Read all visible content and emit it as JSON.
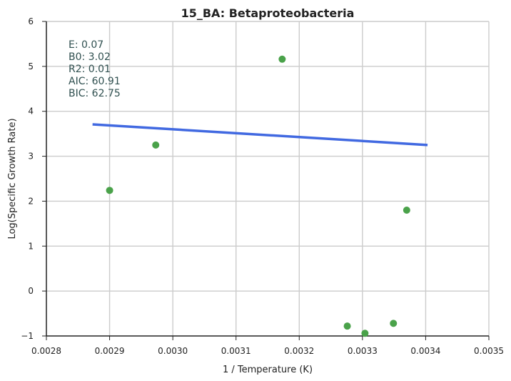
{
  "chart_data": {
    "type": "scatter",
    "title": "15_BA: Betaproteobacteria",
    "xlabel": "1 / Temperature (K)",
    "ylabel": "Log(Specific Growth Rate)",
    "xlim": [
      0.0028,
      0.0035
    ],
    "ylim": [
      -1,
      6
    ],
    "x_ticks": [
      "0.0028",
      "0.0029",
      "0.0030",
      "0.0031",
      "0.0032",
      "0.0033",
      "0.0034",
      "0.0035"
    ],
    "y_ticks": [
      "−1",
      "0",
      "1",
      "2",
      "3",
      "4",
      "5",
      "6"
    ],
    "grid": true,
    "series": [
      {
        "type": "scatter",
        "color": "#4aa24a",
        "x": [
          0.0029,
          0.002973,
          0.003173,
          0.003276,
          0.003304,
          0.003349,
          0.00337
        ],
        "y": [
          2.24,
          3.25,
          5.16,
          -0.78,
          -0.94,
          -0.72,
          1.8
        ]
      },
      {
        "type": "line",
        "color": "#4169e1",
        "x": [
          0.002873,
          0.003403
        ],
        "y": [
          3.71,
          3.25
        ]
      }
    ],
    "annotations": [
      "E:  0.07",
      "B0:  3.02",
      "R2:  0.01",
      "AIC: 60.91",
      "BIC: 62.75"
    ]
  }
}
